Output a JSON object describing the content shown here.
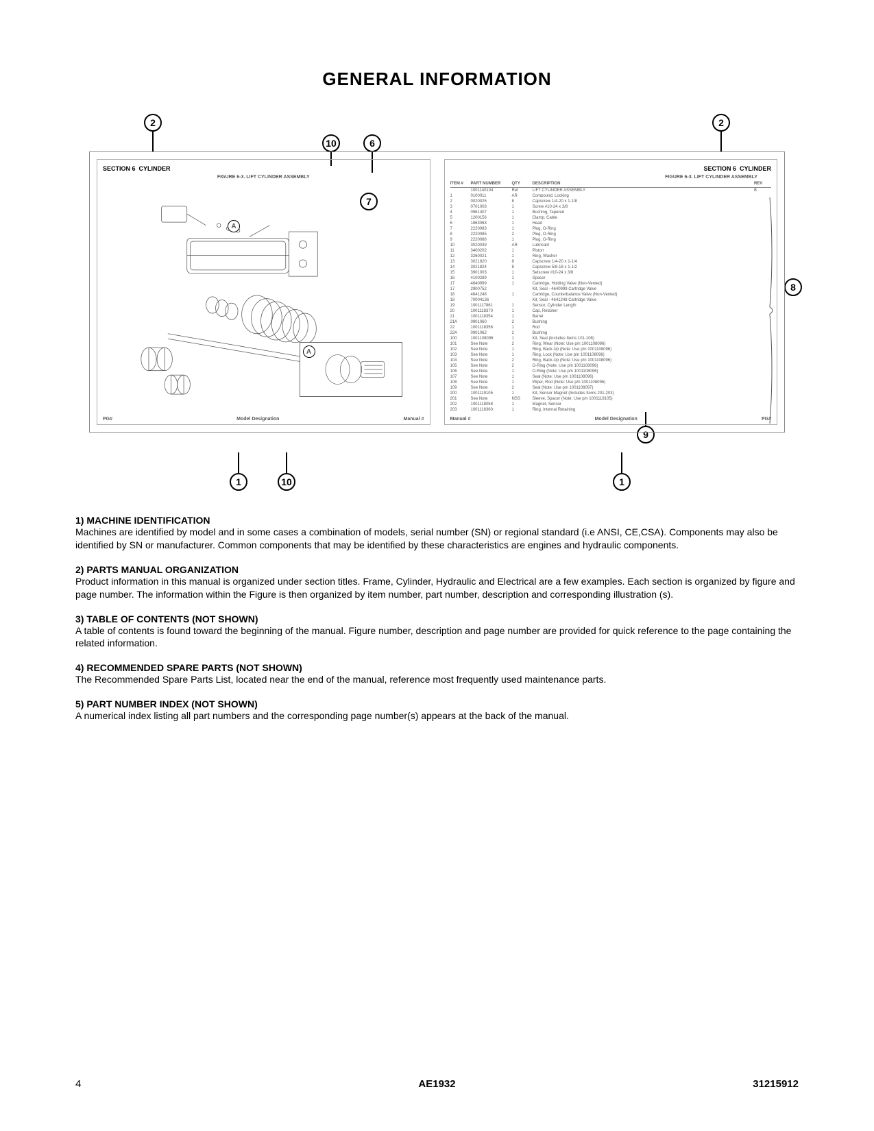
{
  "page_title": "GENERAL INFORMATION",
  "callouts": {
    "c2a": "2",
    "c2b": "2",
    "c10a": "10",
    "c10b": "10",
    "c6": "6",
    "c7": "7",
    "c8": "8",
    "c9": "9",
    "c1a": "1",
    "c1b": "1",
    "cA": "A"
  },
  "left_panel": {
    "section_label": "SECTION 6",
    "section_name": "CYLINDER",
    "figure_title": "FIGURE 6-3. LIFT CYLINDER ASSEMBLY",
    "footer_left": "PG#",
    "footer_center": "Model Designation",
    "footer_right": "Manual #"
  },
  "right_panel": {
    "section_label": "SECTION 6",
    "section_name": "CYLINDER",
    "figure_title": "FIGURE 6-3. LIFT CYLINDER ASSEMBLY",
    "footer_left": "Manual #",
    "footer_center": "Model Designation",
    "footer_right": "PG#",
    "table_headers": {
      "item": "ITEM #",
      "part": "PART NUMBER",
      "qty": "QTY",
      "desc": "DESCRIPTION",
      "rev": "REV"
    },
    "rows": [
      {
        "item": "",
        "part": "1001140104",
        "qty": "Ref",
        "desc": "LIFT CYLINDER ASSEMBLY",
        "rev": "B"
      },
      {
        "item": "1",
        "part": "0100011",
        "qty": "AR",
        "desc": "Compound, Locking",
        "rev": ""
      },
      {
        "item": "2",
        "part": "0020025",
        "qty": "8",
        "desc": "Capscrew 1/4-20 x 1-1/8",
        "rev": ""
      },
      {
        "item": "3",
        "part": "0701003",
        "qty": "1",
        "desc": "Screw #10-24 x 3/8",
        "rev": ""
      },
      {
        "item": "4",
        "part": "0961407",
        "qty": "1",
        "desc": "Bushing, Tapered",
        "rev": ""
      },
      {
        "item": "5",
        "part": "1200156",
        "qty": "1",
        "desc": "Clamp, Cable",
        "rev": ""
      },
      {
        "item": "6",
        "part": "1863063",
        "qty": "1",
        "desc": "Head",
        "rev": ""
      },
      {
        "item": "7",
        "part": "2220083",
        "qty": "1",
        "desc": "Plug, O-Ring",
        "rev": ""
      },
      {
        "item": "8",
        "part": "2220085",
        "qty": "2",
        "desc": "Plug, O-Ring",
        "rev": ""
      },
      {
        "item": "9",
        "part": "2220086",
        "qty": "1",
        "desc": "Plug, O-Ring",
        "rev": ""
      },
      {
        "item": "10",
        "part": "3020039",
        "qty": "AR",
        "desc": "Lubricant",
        "rev": ""
      },
      {
        "item": "11",
        "part": "3400202",
        "qty": "1",
        "desc": "Piston",
        "rev": ""
      },
      {
        "item": "12",
        "part": "3260021",
        "qty": "1",
        "desc": "Ring, Washer",
        "rev": ""
      },
      {
        "item": "13",
        "part": "3021820",
        "qty": "8",
        "desc": "Capscrew 1/4-20 x 1-1/4",
        "rev": ""
      },
      {
        "item": "14",
        "part": "3021824",
        "qty": "8",
        "desc": "Capscrew 5/8-18 x 1-1/2",
        "rev": ""
      },
      {
        "item": "15",
        "part": "3901003",
        "qty": "1",
        "desc": "Setscrew #10-24 x 3/8",
        "rev": ""
      },
      {
        "item": "16",
        "part": "4100289",
        "qty": "1",
        "desc": "Spacer",
        "rev": ""
      },
      {
        "item": "17",
        "part": "4640999",
        "qty": "1",
        "desc": "Cartridge, Holding Valve (Non-Vented)",
        "rev": ""
      },
      {
        "item": "17",
        "part": "2900752",
        "qty": "",
        "desc": "Kit, Seal - 4640999 Cartridge Valve",
        "rev": ""
      },
      {
        "item": "18",
        "part": "4641248",
        "qty": "1",
        "desc": "Cartridge, Counterbalance Valve (Non-Vented)",
        "rev": ""
      },
      {
        "item": "18",
        "part": "70004136",
        "qty": "",
        "desc": "Kit, Seal - 4641248 Cartridge Valve",
        "rev": ""
      },
      {
        "item": "19",
        "part": "1001117861",
        "qty": "1",
        "desc": "Sensor, Cylinder Length",
        "rev": ""
      },
      {
        "item": "20",
        "part": "1001118370",
        "qty": "1",
        "desc": "Cap, Retainer",
        "rev": ""
      },
      {
        "item": "21",
        "part": "1001118354",
        "qty": "1",
        "desc": "Barrel",
        "rev": ""
      },
      {
        "item": "21A",
        "part": "0901060",
        "qty": "2",
        "desc": "Bushing",
        "rev": ""
      },
      {
        "item": "22",
        "part": "1001118356",
        "qty": "1",
        "desc": "Rod",
        "rev": ""
      },
      {
        "item": "22A",
        "part": "0901062",
        "qty": "2",
        "desc": "Bushing",
        "rev": ""
      },
      {
        "item": "100",
        "part": "1001108096",
        "qty": "1",
        "desc": "Kit, Seal (Includes Items 101-108)",
        "rev": ""
      },
      {
        "item": "101",
        "part": "See Note",
        "qty": "2",
        "desc": "Ring, Wear (Note: Use p/n 1001108096)",
        "rev": ""
      },
      {
        "item": "102",
        "part": "See Note",
        "qty": "1",
        "desc": "Ring, Back-Up (Note: Use p/n 1001108096)",
        "rev": ""
      },
      {
        "item": "103",
        "part": "See Note",
        "qty": "1",
        "desc": "Ring, Lock (Note: Use p/n 1001108096)",
        "rev": ""
      },
      {
        "item": "104",
        "part": "See Note",
        "qty": "2",
        "desc": "Ring, Back-Up (Note: Use p/n 1001108096)",
        "rev": ""
      },
      {
        "item": "105",
        "part": "See Note",
        "qty": "2",
        "desc": "O-Ring (Note: Use p/n 1001108096)",
        "rev": ""
      },
      {
        "item": "106",
        "part": "See Note",
        "qty": "1",
        "desc": "O-Ring (Note: Use p/n 1001108096)",
        "rev": ""
      },
      {
        "item": "107",
        "part": "See Note",
        "qty": "1",
        "desc": "Seal (Note: Use p/n 1001108096)",
        "rev": ""
      },
      {
        "item": "108",
        "part": "See Note",
        "qty": "1",
        "desc": "Wiper, Rod (Note: Use p/n 1001108096)",
        "rev": ""
      },
      {
        "item": "109",
        "part": "See Note",
        "qty": "2",
        "desc": "Seal (Note: Use p/n 1001108097)",
        "rev": ""
      },
      {
        "item": "200",
        "part": "1001119105",
        "qty": "1",
        "desc": "Kit, Sensor Magnet (Includes Items 201-203)",
        "rev": ""
      },
      {
        "item": "201",
        "part": "See Note",
        "qty": "NSS",
        "desc": "Sleeve, Spacer (Note: Use p/n 1001119105)",
        "rev": ""
      },
      {
        "item": "202",
        "part": "1001118058",
        "qty": "1",
        "desc": "Magnet, Sensor",
        "rev": ""
      },
      {
        "item": "203",
        "part": "1001118360",
        "qty": "1",
        "desc": "Ring, Internal Retaining",
        "rev": ""
      }
    ]
  },
  "sections": [
    {
      "title": "1) MACHINE IDENTIFICATION",
      "body": "Machines are identified by model and in some cases a combination of models, serial number (SN) or regional standard (i.e ANSI, CE,CSA). Components may also be identified by SN or manufacturer. Common components that may be identified by these characteristics are engines and hydraulic components."
    },
    {
      "title": "2) PARTS MANUAL ORGANIZATION",
      "body": "Product information in this manual is organized under section titles. Frame, Cylinder, Hydraulic and Electrical are a few examples. Each section is organized by figure and page number. The information within the Figure is then organized by item number, part number, description and corresponding illustration (s)."
    },
    {
      "title": "3) TABLE OF CONTENTS (NOT SHOWN)",
      "body": "A table of contents is found toward the beginning of the manual. Figure number, description and page number are provided for quick reference to the page containing the related information."
    },
    {
      "title": "4) RECOMMENDED SPARE PARTS (NOT SHOWN)",
      "body": "The Recommended Spare Parts List, located near the end of the manual, reference most frequently used maintenance parts."
    },
    {
      "title": "5) PART NUMBER INDEX (NOT SHOWN)",
      "body": "A numerical index listing all part numbers and the corresponding page number(s) appears at the back of the manual."
    }
  ],
  "footer": {
    "page_number": "4",
    "model": "AE1932",
    "doc_number": "31215912"
  }
}
